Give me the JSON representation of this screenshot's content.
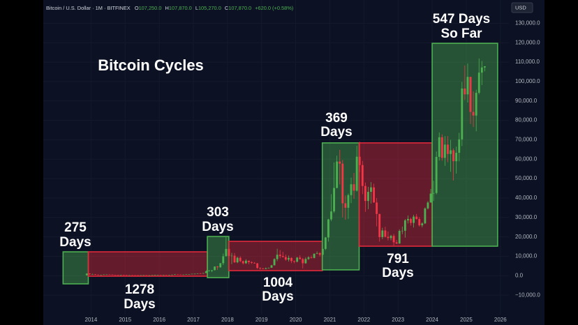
{
  "chart_data": {
    "type": "candlestick",
    "header": {
      "symbol": "Bitcoin / U.S. Dollar · 1M · BITFINEX",
      "ohlc": [
        {
          "label": "O",
          "value": "107,250.0"
        },
        {
          "label": "H",
          "value": "107,870.0"
        },
        {
          "label": "L",
          "value": "105,270.0"
        },
        {
          "label": "C",
          "value": "107,870.0"
        }
      ],
      "change": "+620.0 (+0.58%)"
    },
    "currency": "USD",
    "title": "Bitcoin Cycles",
    "colors": {
      "up": "#4caf50",
      "down": "#f23645"
    },
    "xlim": [
      2012.6,
      2026.25
    ],
    "xticks": [
      2014,
      2015,
      2016,
      2017,
      2018,
      2019,
      2020,
      2021,
      2022,
      2023,
      2024,
      2025,
      2026
    ],
    "ylim": [
      -20000,
      142000
    ],
    "yticks": [
      {
        "value": -10000,
        "label": "−10,000.0"
      },
      {
        "value": 0,
        "label": "0.0"
      },
      {
        "value": 10000,
        "label": "10,000.0"
      },
      {
        "value": 20000,
        "label": "20,000.0"
      },
      {
        "value": 30000,
        "label": "30,000.0"
      },
      {
        "value": 40000,
        "label": "40,000.0"
      },
      {
        "value": 50000,
        "label": "50,000.0"
      },
      {
        "value": 60000,
        "label": "60,000.0"
      },
      {
        "value": 70000,
        "label": "70,000.0"
      },
      {
        "value": 80000,
        "label": "80,000.0"
      },
      {
        "value": 90000,
        "label": "90,000.0"
      },
      {
        "value": 100000,
        "label": "100,000.0"
      },
      {
        "value": 110000,
        "label": "110,000.0"
      },
      {
        "value": 120000,
        "label": "120,000.0"
      },
      {
        "value": 130000,
        "label": "130,000.0"
      }
    ],
    "x": [
      2013.875,
      2013.958,
      2014.042,
      2014.125,
      2014.208,
      2014.292,
      2014.375,
      2014.458,
      2014.542,
      2014.625,
      2014.708,
      2014.792,
      2014.875,
      2014.958,
      2015.042,
      2015.125,
      2015.208,
      2015.292,
      2015.375,
      2015.458,
      2015.542,
      2015.625,
      2015.708,
      2015.792,
      2015.875,
      2015.958,
      2016.042,
      2016.125,
      2016.208,
      2016.292,
      2016.375,
      2016.458,
      2016.542,
      2016.625,
      2016.708,
      2016.792,
      2016.875,
      2016.958,
      2017.042,
      2017.125,
      2017.208,
      2017.292,
      2017.375,
      2017.458,
      2017.542,
      2017.625,
      2017.708,
      2017.792,
      2017.875,
      2017.958,
      2018.042,
      2018.125,
      2018.208,
      2018.292,
      2018.375,
      2018.458,
      2018.542,
      2018.625,
      2018.708,
      2018.792,
      2018.875,
      2018.958,
      2019.042,
      2019.125,
      2019.208,
      2019.292,
      2019.375,
      2019.458,
      2019.542,
      2019.625,
      2019.708,
      2019.792,
      2019.875,
      2019.958,
      2020.042,
      2020.125,
      2020.208,
      2020.292,
      2020.375,
      2020.458,
      2020.542,
      2020.625,
      2020.708,
      2020.792,
      2020.875,
      2020.958,
      2021.042,
      2021.125,
      2021.208,
      2021.292,
      2021.375,
      2021.458,
      2021.542,
      2021.625,
      2021.708,
      2021.792,
      2021.875,
      2021.958,
      2022.042,
      2022.125,
      2022.208,
      2022.292,
      2022.375,
      2022.458,
      2022.542,
      2022.625,
      2022.708,
      2022.792,
      2022.875,
      2022.958,
      2023.042,
      2023.125,
      2023.208,
      2023.292,
      2023.375,
      2023.458,
      2023.542,
      2023.625,
      2023.708,
      2023.792,
      2023.875,
      2023.958,
      2024.042,
      2024.125,
      2024.208,
      2024.292,
      2024.375,
      2024.458,
      2024.542,
      2024.625,
      2024.708,
      2024.792,
      2024.875,
      2024.958,
      2025.042,
      2025.125,
      2025.208,
      2025.292,
      2025.375,
      2025.458,
      2025.542
    ],
    "open": [
      210,
      1130,
      750,
      800,
      550,
      450,
      450,
      630,
      640,
      590,
      480,
      390,
      340,
      380,
      320,
      220,
      255,
      245,
      236,
      230,
      263,
      285,
      230,
      236,
      312,
      377,
      430,
      370,
      437,
      416,
      448,
      530,
      670,
      624,
      574,
      609,
      700,
      742,
      963,
      970,
      1190,
      1080,
      1350,
      2300,
      2480,
      2875,
      4740,
      4340,
      6450,
      10000,
      13800,
      10200,
      10300,
      6900,
      9240,
      7500,
      6400,
      7730,
      7000,
      6630,
      6340,
      4020,
      3740,
      3460,
      3850,
      4100,
      5350,
      8560,
      10800,
      10100,
      9600,
      8300,
      9150,
      7550,
      7200,
      9350,
      8550,
      6410,
      8620,
      9450,
      9140,
      11350,
      11650,
      10780,
      13800,
      19700,
      29000,
      33100,
      45200,
      58800,
      57700,
      37300,
      35000,
      41500,
      47100,
      43800,
      61300,
      57000,
      46200,
      38500,
      43200,
      45500,
      37700,
      31800,
      19900,
      23300,
      20050,
      19400,
      20500,
      17200,
      16550,
      23100,
      23150,
      28500,
      29250,
      27200,
      30450,
      29200,
      25950,
      26950,
      34650,
      37700,
      42300,
      42600,
      61200,
      71300,
      60700,
      67500,
      62700,
      64600,
      58970,
      63330,
      70200,
      96400,
      93400,
      102400,
      84350,
      82500,
      94200,
      104600,
      107250
    ],
    "high": [
      1160,
      1160,
      1000,
      840,
      690,
      540,
      630,
      680,
      660,
      600,
      500,
      420,
      460,
      390,
      320,
      265,
      300,
      260,
      250,
      270,
      320,
      290,
      245,
      330,
      500,
      465,
      460,
      440,
      440,
      470,
      550,
      780,
      700,
      630,
      620,
      720,
      755,
      975,
      1150,
      1200,
      1350,
      1350,
      2760,
      2980,
      2920,
      4760,
      5000,
      6470,
      11400,
      19800,
      17200,
      11800,
      11700,
      9800,
      10000,
      7800,
      8500,
      7760,
      7400,
      7000,
      6600,
      4300,
      4100,
      4200,
      4150,
      5600,
      9000,
      13900,
      13200,
      12300,
      10900,
      10400,
      9500,
      7800,
      9600,
      10500,
      9200,
      9500,
      10100,
      10400,
      11450,
      12500,
      12100,
      14000,
      19900,
      29300,
      42000,
      58400,
      61800,
      64800,
      59600,
      41300,
      42300,
      50500,
      52900,
      67000,
      69000,
      59100,
      47990,
      45800,
      48200,
      47400,
      40000,
      31900,
      24700,
      25200,
      22800,
      21100,
      21500,
      18400,
      23900,
      25300,
      29200,
      31000,
      29900,
      31400,
      31800,
      30200,
      27500,
      35200,
      38400,
      44700,
      48900,
      64000,
      73800,
      72800,
      71900,
      71900,
      70000,
      65600,
      66500,
      73600,
      99800,
      108300,
      109300,
      102500,
      95000,
      95800,
      111900,
      110600,
      107870
    ],
    "low": [
      210,
      520,
      740,
      420,
      450,
      340,
      420,
      540,
      570,
      440,
      360,
      290,
      310,
      300,
      160,
      210,
      240,
      210,
      225,
      220,
      255,
      200,
      225,
      235,
      300,
      350,
      350,
      365,
      390,
      410,
      440,
      520,
      480,
      530,
      570,
      600,
      680,
      740,
      750,
      920,
      890,
      1060,
      1350,
      2100,
      1840,
      2680,
      2970,
      4100,
      5500,
      10000,
      9300,
      6000,
      6600,
      6430,
      7000,
      5800,
      6100,
      5880,
      6100,
      6200,
      3500,
      3100,
      3350,
      3390,
      3700,
      4050,
      5300,
      7500,
      9000,
      9400,
      7700,
      7300,
      6500,
      6400,
      6850,
      8400,
      3800,
      6150,
      8100,
      8900,
      8900,
      11100,
      9900,
      10400,
      13200,
      17600,
      28100,
      32300,
      45000,
      47000,
      30000,
      28800,
      29300,
      37400,
      39600,
      43300,
      53300,
      42000,
      32900,
      34300,
      37200,
      37600,
      25400,
      17600,
      18800,
      19600,
      18150,
      18200,
      15500,
      16300,
      16500,
      21400,
      19600,
      26900,
      25800,
      24800,
      28900,
      25300,
      24900,
      26600,
      34100,
      37600,
      38500,
      41900,
      59300,
      59200,
      56600,
      58500,
      53500,
      49000,
      52600,
      58900,
      66800,
      90500,
      89200,
      78200,
      76600,
      74400,
      93400,
      98200,
      105270
    ],
    "close": [
      1130,
      750,
      800,
      550,
      450,
      450,
      630,
      640,
      590,
      480,
      390,
      340,
      380,
      320,
      220,
      255,
      245,
      236,
      230,
      263,
      285,
      230,
      236,
      312,
      377,
      430,
      370,
      437,
      416,
      448,
      530,
      670,
      624,
      574,
      609,
      700,
      742,
      963,
      970,
      1190,
      1080,
      1350,
      2300,
      2480,
      2875,
      4740,
      4340,
      6450,
      10000,
      13800,
      10200,
      10300,
      6900,
      9240,
      7500,
      6400,
      7730,
      7000,
      6630,
      6340,
      4020,
      3740,
      3460,
      3850,
      4100,
      5350,
      8560,
      10800,
      10100,
      9600,
      8300,
      9150,
      7550,
      7200,
      9350,
      8550,
      6410,
      8620,
      9450,
      9140,
      11350,
      11650,
      10780,
      13800,
      19700,
      29000,
      33100,
      45200,
      58800,
      57700,
      37300,
      35000,
      41500,
      47100,
      43800,
      61300,
      57000,
      46200,
      38500,
      43200,
      45500,
      37700,
      31800,
      19900,
      23300,
      20050,
      19400,
      20500,
      17200,
      16550,
      23100,
      23150,
      28500,
      29250,
      27200,
      30450,
      29200,
      25950,
      26950,
      34650,
      37700,
      42300,
      42600,
      61200,
      71300,
      60700,
      67500,
      62700,
      64600,
      58970,
      63330,
      70200,
      96400,
      93400,
      102400,
      84350,
      82500,
      94200,
      104600,
      107250,
      107870
    ],
    "boxes": [
      {
        "x0": 2013.18,
        "x1": 2013.92,
        "y0": -4200,
        "y1": 12300,
        "color": "#4caf50",
        "label": [
          "275",
          "Days"
        ]
      },
      {
        "x0": 2013.92,
        "x1": 2017.41,
        "y0": -250,
        "y1": 12300,
        "color": "#e0293a",
        "label": [
          "1278",
          "Days"
        ]
      },
      {
        "x0": 2017.41,
        "x1": 2018.04,
        "y0": -1000,
        "y1": 20200,
        "color": "#4caf50",
        "label": [
          "303",
          "Days"
        ]
      },
      {
        "x0": 2018.04,
        "x1": 2020.78,
        "y0": 2600,
        "y1": 17700,
        "color": "#e0293a",
        "label": [
          "1004",
          "Days"
        ]
      },
      {
        "x0": 2020.78,
        "x1": 2021.86,
        "y0": 3000,
        "y1": 68400,
        "color": "#4caf50",
        "label": [
          "369",
          "Days"
        ]
      },
      {
        "x0": 2021.86,
        "x1": 2024.0,
        "y0": 15200,
        "y1": 68400,
        "color": "#e0293a",
        "label": [
          "791",
          "Days"
        ]
      },
      {
        "x0": 2024.0,
        "x1": 2025.92,
        "y0": 15200,
        "y1": 119700,
        "color": "#4caf50",
        "label": [
          "547 Days",
          "So Far"
        ]
      }
    ]
  }
}
